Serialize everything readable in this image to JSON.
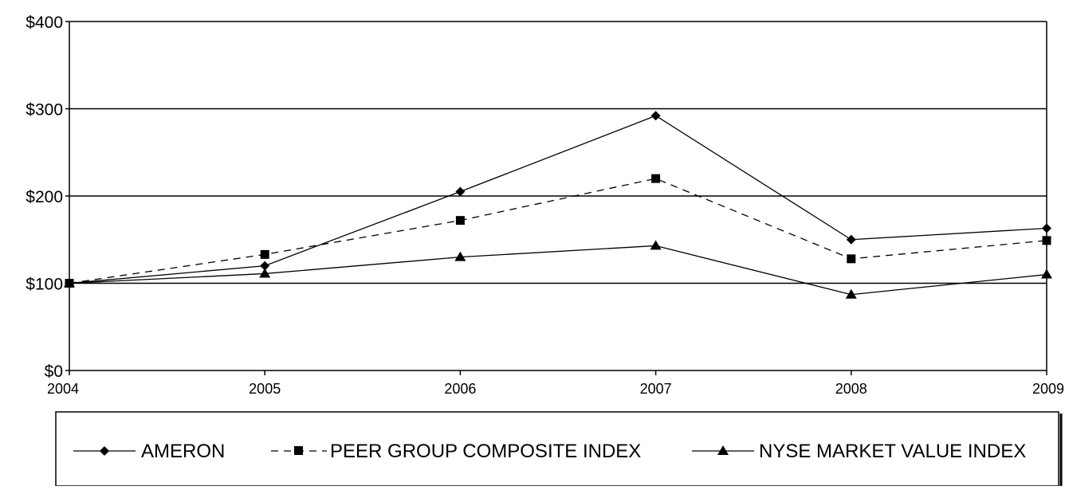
{
  "chart_data": {
    "type": "line",
    "title": "",
    "xlabel": "",
    "ylabel": "",
    "categories": [
      "2004",
      "2005",
      "2006",
      "2007",
      "2008",
      "2009"
    ],
    "ylim": [
      0,
      400
    ],
    "yticks": [
      0,
      100,
      200,
      300,
      400
    ],
    "ytick_labels": [
      "$0",
      "$100",
      "$200",
      "$300",
      "$400"
    ],
    "grid": "horizontal",
    "legend_position": "bottom",
    "series": [
      {
        "name": "AMERON",
        "marker": "diamond",
        "dash": "solid",
        "values": [
          100,
          120,
          205,
          292,
          150,
          163
        ]
      },
      {
        "name": "PEER GROUP COMPOSITE INDEX",
        "marker": "square",
        "dash": "dashed",
        "values": [
          100,
          133,
          172,
          220,
          128,
          149
        ]
      },
      {
        "name": "NYSE MARKET VALUE INDEX",
        "marker": "triangle",
        "dash": "solid",
        "values": [
          100,
          111,
          130,
          143,
          87,
          110
        ]
      }
    ],
    "colors": {
      "line": "#000000",
      "grid": "#000000",
      "background": "#ffffff"
    }
  }
}
